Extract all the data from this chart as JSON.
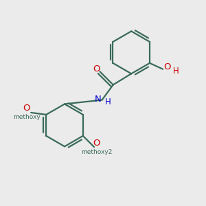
{
  "bg_color": "#ebebeb",
  "bond_color": "#3a6b5a",
  "bond_width": 1.6,
  "O_color": "#cc0000",
  "N_color": "#0000cc",
  "figsize": [
    3.0,
    3.0
  ],
  "dpi": 100,
  "xlim": [
    0,
    10
  ],
  "ylim": [
    0,
    10
  ]
}
